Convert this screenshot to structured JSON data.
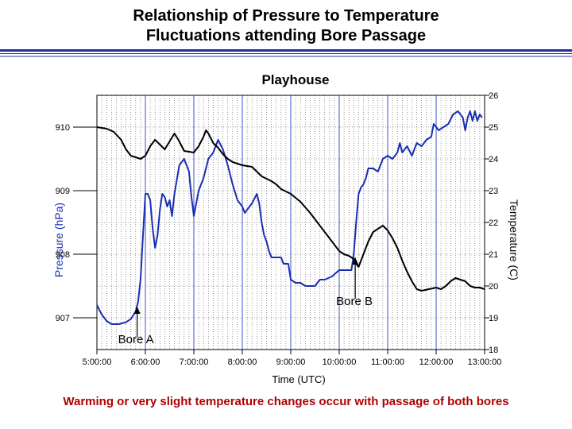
{
  "slide": {
    "title_line1": "Relationship of Pressure to Temperature",
    "title_line2": "Fluctuations attending Bore Passage",
    "caption": "Warming or very slight temperature changes occur with passage of both bores"
  },
  "colors": {
    "rule": "#1a2fa8",
    "caption": "#b00000",
    "pressure": "#1a2fb0",
    "temperature": "#000000",
    "grid_major": "#3a4fd0"
  },
  "chart_data": {
    "type": "line",
    "title": "Playhouse",
    "xlabel": "Time (UTC)",
    "ylabel_left": "Pressure (hPa)",
    "ylabel_right": "Temperature (C)",
    "x_ticks": [
      "5:00:00",
      "6:00:00",
      "7:00:00",
      "8:00:00",
      "9:00:00",
      "10:00:00",
      "11:00:00",
      "12:00:00",
      "13:00:00"
    ],
    "xlim_hours": [
      5,
      13
    ],
    "y_left_ticks": [
      "910",
      "909",
      "908",
      "907"
    ],
    "y_left_range": [
      906.5,
      910.5
    ],
    "y_right_ticks": [
      "26",
      "25",
      "24",
      "23",
      "22",
      "21",
      "20",
      "19",
      "18"
    ],
    "y_right_range": [
      18,
      26
    ],
    "grid": true,
    "annotations": [
      {
        "label": "Bore A",
        "time": 5.83
      },
      {
        "label": "Bore B",
        "time": 10.33
      }
    ],
    "series": [
      {
        "axis": "left",
        "color": "#1a2fb0",
        "points": [
          [
            5.0,
            907.2
          ],
          [
            5.1,
            907.05
          ],
          [
            5.2,
            906.95
          ],
          [
            5.3,
            906.9
          ],
          [
            5.45,
            906.9
          ],
          [
            5.6,
            906.93
          ],
          [
            5.7,
            906.98
          ],
          [
            5.8,
            907.1
          ],
          [
            5.85,
            907.25
          ],
          [
            5.9,
            907.6
          ],
          [
            5.95,
            908.3
          ],
          [
            6.0,
            908.95
          ],
          [
            6.05,
            908.95
          ],
          [
            6.1,
            908.85
          ],
          [
            6.15,
            908.4
          ],
          [
            6.2,
            908.1
          ],
          [
            6.25,
            908.3
          ],
          [
            6.3,
            908.7
          ],
          [
            6.35,
            908.95
          ],
          [
            6.4,
            908.9
          ],
          [
            6.45,
            908.75
          ],
          [
            6.5,
            908.85
          ],
          [
            6.55,
            908.6
          ],
          [
            6.6,
            908.95
          ],
          [
            6.7,
            909.4
          ],
          [
            6.8,
            909.5
          ],
          [
            6.9,
            909.3
          ],
          [
            6.95,
            908.9
          ],
          [
            7.0,
            908.6
          ],
          [
            7.05,
            908.8
          ],
          [
            7.1,
            909.0
          ],
          [
            7.2,
            909.2
          ],
          [
            7.3,
            909.5
          ],
          [
            7.4,
            909.6
          ],
          [
            7.5,
            909.8
          ],
          [
            7.6,
            909.65
          ],
          [
            7.7,
            909.4
          ],
          [
            7.8,
            909.1
          ],
          [
            7.9,
            908.85
          ],
          [
            8.0,
            908.75
          ],
          [
            8.05,
            908.65
          ],
          [
            8.1,
            908.7
          ],
          [
            8.2,
            908.8
          ],
          [
            8.3,
            908.95
          ],
          [
            8.35,
            908.8
          ],
          [
            8.4,
            908.5
          ],
          [
            8.45,
            908.3
          ],
          [
            8.5,
            908.2
          ],
          [
            8.55,
            908.05
          ],
          [
            8.6,
            907.95
          ],
          [
            8.7,
            907.95
          ],
          [
            8.8,
            907.95
          ],
          [
            8.85,
            907.85
          ],
          [
            8.95,
            907.85
          ],
          [
            9.0,
            907.6
          ],
          [
            9.1,
            907.55
          ],
          [
            9.2,
            907.55
          ],
          [
            9.3,
            907.5
          ],
          [
            9.5,
            907.5
          ],
          [
            9.6,
            907.6
          ],
          [
            9.7,
            907.6
          ],
          [
            9.85,
            907.65
          ],
          [
            10.0,
            907.75
          ],
          [
            10.1,
            907.75
          ],
          [
            10.25,
            907.75
          ],
          [
            10.3,
            908.0
          ],
          [
            10.35,
            908.5
          ],
          [
            10.4,
            908.95
          ],
          [
            10.45,
            909.05
          ],
          [
            10.5,
            909.1
          ],
          [
            10.55,
            909.2
          ],
          [
            10.6,
            909.35
          ],
          [
            10.7,
            909.35
          ],
          [
            10.8,
            909.3
          ],
          [
            10.85,
            909.4
          ],
          [
            10.9,
            909.5
          ],
          [
            11.0,
            909.55
          ],
          [
            11.1,
            909.5
          ],
          [
            11.2,
            909.6
          ],
          [
            11.25,
            909.75
          ],
          [
            11.3,
            909.6
          ],
          [
            11.4,
            909.7
          ],
          [
            11.5,
            909.55
          ],
          [
            11.6,
            909.75
          ],
          [
            11.7,
            909.7
          ],
          [
            11.8,
            909.8
          ],
          [
            11.9,
            909.85
          ],
          [
            11.95,
            910.05
          ],
          [
            12.05,
            909.95
          ],
          [
            12.15,
            910.0
          ],
          [
            12.25,
            910.05
          ],
          [
            12.35,
            910.2
          ],
          [
            12.45,
            910.25
          ],
          [
            12.55,
            910.15
          ],
          [
            12.6,
            909.95
          ],
          [
            12.65,
            910.15
          ],
          [
            12.7,
            910.25
          ],
          [
            12.75,
            910.1
          ],
          [
            12.8,
            910.25
          ],
          [
            12.85,
            910.1
          ],
          [
            12.9,
            910.2
          ],
          [
            12.95,
            910.15
          ]
        ]
      },
      {
        "axis": "right",
        "color": "#000000",
        "points": [
          [
            5.0,
            25.0
          ],
          [
            5.2,
            24.95
          ],
          [
            5.35,
            24.85
          ],
          [
            5.5,
            24.6
          ],
          [
            5.6,
            24.3
          ],
          [
            5.7,
            24.1
          ],
          [
            5.8,
            24.05
          ],
          [
            5.9,
            24.0
          ],
          [
            6.0,
            24.1
          ],
          [
            6.1,
            24.4
          ],
          [
            6.2,
            24.6
          ],
          [
            6.3,
            24.45
          ],
          [
            6.4,
            24.3
          ],
          [
            6.5,
            24.55
          ],
          [
            6.6,
            24.8
          ],
          [
            6.7,
            24.55
          ],
          [
            6.8,
            24.25
          ],
          [
            7.0,
            24.2
          ],
          [
            7.1,
            24.4
          ],
          [
            7.2,
            24.7
          ],
          [
            7.25,
            24.9
          ],
          [
            7.3,
            24.8
          ],
          [
            7.4,
            24.5
          ],
          [
            7.5,
            24.35
          ],
          [
            7.6,
            24.15
          ],
          [
            7.7,
            24.0
          ],
          [
            7.8,
            23.9
          ],
          [
            7.9,
            23.85
          ],
          [
            8.0,
            23.8
          ],
          [
            8.2,
            23.75
          ],
          [
            8.3,
            23.6
          ],
          [
            8.4,
            23.45
          ],
          [
            8.6,
            23.3
          ],
          [
            8.7,
            23.2
          ],
          [
            8.8,
            23.05
          ],
          [
            9.0,
            22.9
          ],
          [
            9.2,
            22.65
          ],
          [
            9.4,
            22.3
          ],
          [
            9.6,
            21.9
          ],
          [
            9.8,
            21.5
          ],
          [
            9.9,
            21.3
          ],
          [
            10.0,
            21.1
          ],
          [
            10.1,
            21.0
          ],
          [
            10.2,
            20.95
          ],
          [
            10.3,
            20.85
          ],
          [
            10.35,
            20.7
          ],
          [
            10.4,
            20.6
          ],
          [
            10.45,
            20.8
          ],
          [
            10.5,
            21.0
          ],
          [
            10.6,
            21.4
          ],
          [
            10.7,
            21.7
          ],
          [
            10.8,
            21.8
          ],
          [
            10.9,
            21.9
          ],
          [
            11.0,
            21.75
          ],
          [
            11.1,
            21.5
          ],
          [
            11.2,
            21.2
          ],
          [
            11.3,
            20.8
          ],
          [
            11.4,
            20.45
          ],
          [
            11.5,
            20.15
          ],
          [
            11.6,
            19.9
          ],
          [
            11.7,
            19.85
          ],
          [
            11.85,
            19.9
          ],
          [
            12.0,
            19.95
          ],
          [
            12.1,
            19.9
          ],
          [
            12.2,
            20.0
          ],
          [
            12.3,
            20.15
          ],
          [
            12.4,
            20.25
          ],
          [
            12.5,
            20.2
          ],
          [
            12.6,
            20.15
          ],
          [
            12.7,
            20.0
          ],
          [
            12.8,
            19.95
          ],
          [
            12.9,
            19.95
          ],
          [
            13.0,
            19.9
          ]
        ]
      }
    ]
  }
}
